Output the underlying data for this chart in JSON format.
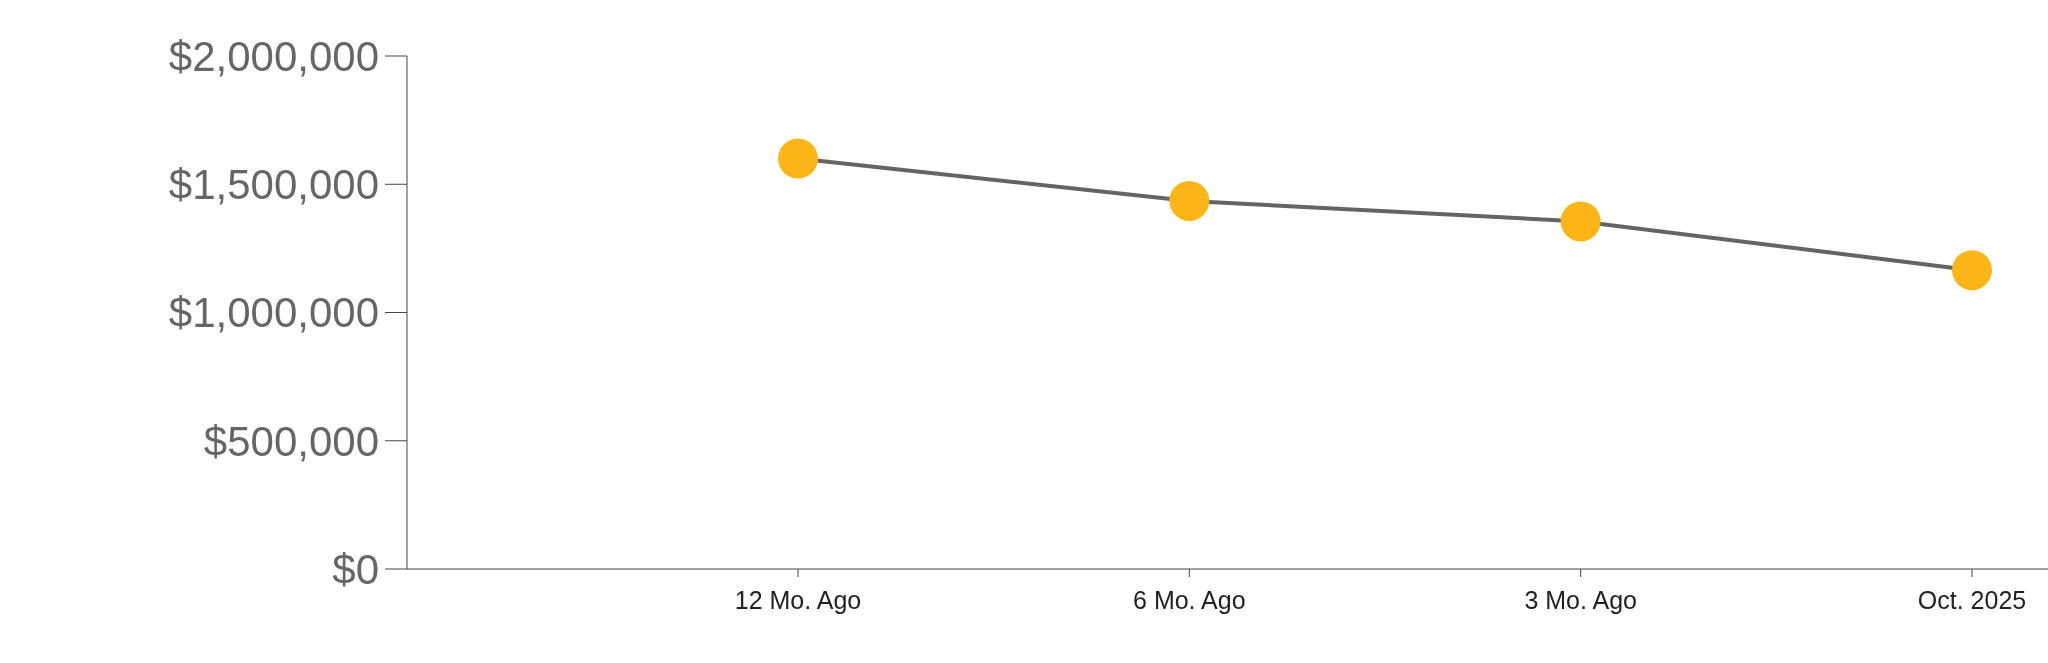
{
  "chart_data": {
    "type": "line",
    "categories": [
      "12 Mo. Ago",
      "6 Mo. Ago",
      "3 Mo. Ago",
      "Oct. 2025"
    ],
    "series": [
      {
        "color": "#646464",
        "colors": [
          "#fbb516",
          "#fbb516",
          "#fbb516",
          "#fbb516"
        ],
        "values": [
          1600000,
          1435000,
          1355000,
          1165000
        ]
      }
    ],
    "ylim": [
      0,
      2000000
    ],
    "yticks": [
      {
        "value": 0,
        "label": "$0"
      },
      {
        "value": 500000,
        "label": "$500,000"
      },
      {
        "value": 1000000,
        "label": "$1,000,000"
      },
      {
        "value": 1500000,
        "label": "$1,500,000"
      },
      {
        "value": 2000000,
        "label": "$2,000,000"
      }
    ],
    "grid": false,
    "legend": false,
    "marker": "circle",
    "line_style": "solid"
  }
}
